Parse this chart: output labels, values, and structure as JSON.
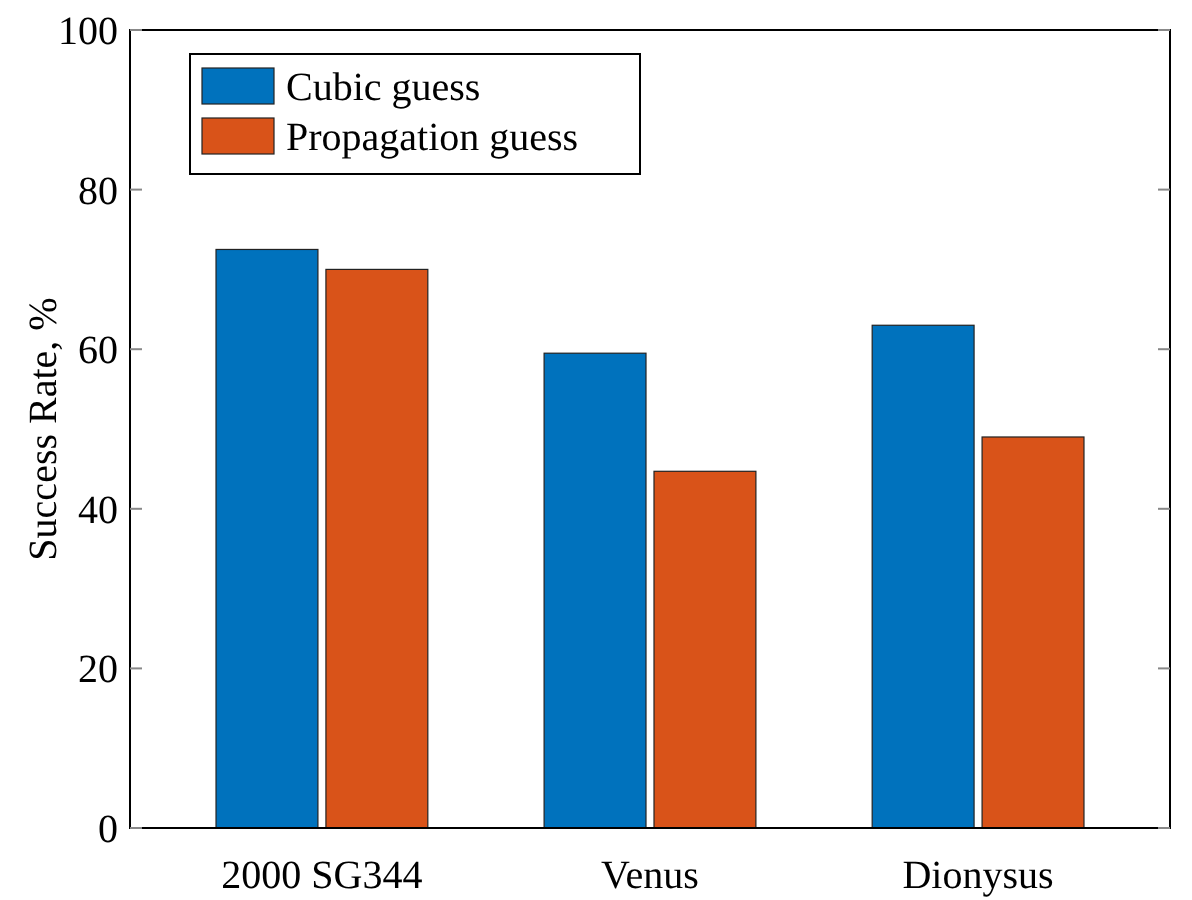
{
  "chart_data": {
    "type": "bar",
    "ylabel": "Success Rate, %",
    "categories": [
      "2000 SG344",
      "Venus",
      "Dionysus"
    ],
    "series": [
      {
        "name": "Cubic guess",
        "color": "#0072bd",
        "values": [
          72.5,
          59.5,
          63
        ]
      },
      {
        "name": "Propagation guess",
        "color": "#d95319",
        "values": [
          70,
          44.7,
          49
        ]
      }
    ],
    "ylim": [
      0,
      100
    ],
    "yticks": [
      0,
      20,
      40,
      60,
      80,
      100
    ],
    "grid": false,
    "legend": "top left"
  }
}
